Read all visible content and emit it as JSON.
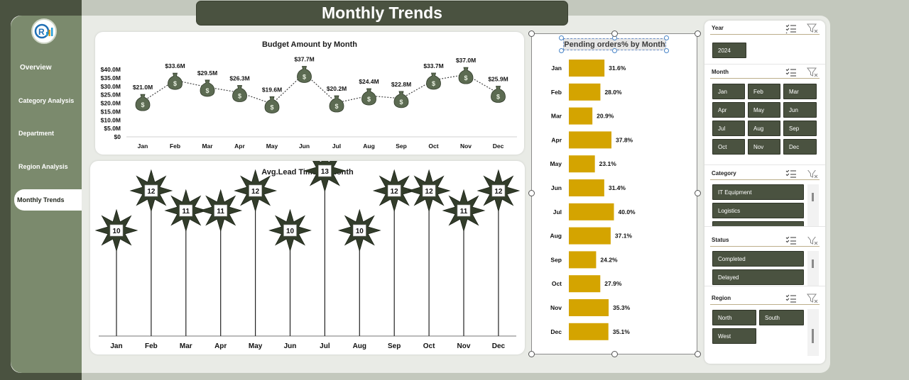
{
  "title": "Monthly Trends",
  "nav": [
    {
      "label": "Overview"
    },
    {
      "label": "Category Analysis"
    },
    {
      "label": "Department"
    },
    {
      "label": "Region Analysis"
    },
    {
      "label": "Monthly Trends"
    }
  ],
  "budget": {
    "title": "Budget Amount by Month",
    "months": [
      "Jan",
      "Feb",
      "Mar",
      "Apr",
      "May",
      "Jun",
      "Jul",
      "Aug",
      "Sep",
      "Oct",
      "Nov",
      "Dec"
    ],
    "labels": [
      "$21.0M",
      "$33.6M",
      "$29.5M",
      "$26.3M",
      "$19.6M",
      "$37.7M",
      "$20.2M",
      "$24.4M",
      "$22.8M",
      "$33.7M",
      "$37.0M",
      "$25.9M"
    ],
    "ticks": [
      "$40.0M",
      "$35.0M",
      "$30.0M",
      "$25.0M",
      "$20.0M",
      "$15.0M",
      "$10.0M",
      "$5.0M",
      "$0"
    ]
  },
  "leadtime": {
    "title": "Avg.Lead Time by Month",
    "months": [
      "Jan",
      "Feb",
      "Mar",
      "Apr",
      "May",
      "Jun",
      "Jul",
      "Aug",
      "Sep",
      "Oct",
      "Nov",
      "Dec"
    ],
    "labels": [
      "10",
      "12",
      "11",
      "11",
      "12",
      "10",
      "13",
      "10",
      "12",
      "12",
      "11",
      "12"
    ]
  },
  "pending": {
    "title": "Pending orders% by Month",
    "months": [
      "Jan",
      "Feb",
      "Mar",
      "Apr",
      "May",
      "Jun",
      "Jul",
      "Aug",
      "Sep",
      "Oct",
      "Nov",
      "Dec"
    ],
    "labels": [
      "31.6%",
      "28.0%",
      "20.9%",
      "37.8%",
      "23.1%",
      "31.4%",
      "40.0%",
      "37.1%",
      "24.2%",
      "27.9%",
      "35.3%",
      "35.1%"
    ]
  },
  "chart_data": [
    {
      "type": "line",
      "title": "Budget Amount by Month",
      "categories": [
        "Jan",
        "Feb",
        "Mar",
        "Apr",
        "May",
        "Jun",
        "Jul",
        "Aug",
        "Sep",
        "Oct",
        "Nov",
        "Dec"
      ],
      "values": [
        21.0,
        33.6,
        29.5,
        26.3,
        19.6,
        37.7,
        20.2,
        24.4,
        22.8,
        33.7,
        37.0,
        25.9
      ],
      "ylim": [
        0,
        40
      ],
      "grid": false
    },
    {
      "type": "scatter",
      "title": "Avg.Lead Time by Month",
      "categories": [
        "Jan",
        "Feb",
        "Mar",
        "Apr",
        "May",
        "Jun",
        "Jul",
        "Aug",
        "Sep",
        "Oct",
        "Nov",
        "Dec"
      ],
      "values": [
        10,
        12,
        11,
        11,
        12,
        10,
        13,
        10,
        12,
        12,
        11,
        12
      ]
    },
    {
      "type": "bar",
      "title": "Pending orders% by Month",
      "categories": [
        "Jan",
        "Feb",
        "Mar",
        "Apr",
        "May",
        "Jun",
        "Jul",
        "Aug",
        "Sep",
        "Oct",
        "Nov",
        "Dec"
      ],
      "values": [
        31.6,
        28.0,
        20.9,
        37.8,
        23.1,
        31.4,
        40.0,
        37.1,
        24.2,
        27.9,
        35.3,
        35.1
      ]
    }
  ],
  "slicers": {
    "year": {
      "title": "Year",
      "items": [
        "2024"
      ]
    },
    "month": {
      "title": "Month",
      "items": [
        "Jan",
        "Feb",
        "Mar",
        "Apr",
        "May",
        "Jun",
        "Jul",
        "Aug",
        "Sep",
        "Oct",
        "Nov",
        "Dec"
      ]
    },
    "category": {
      "title": "Category",
      "items": [
        "IT Equipment",
        "Logistics"
      ]
    },
    "status": {
      "title": "Status",
      "items": [
        "Completed",
        "Delayed"
      ]
    },
    "region": {
      "title": "Region",
      "items": [
        "North",
        "South",
        "West"
      ]
    }
  },
  "colors": {
    "dark_olive": "#4a5240",
    "sidebar": "#7b8a6d",
    "bar_gold": "#d4a400",
    "star": "#333d2b"
  }
}
